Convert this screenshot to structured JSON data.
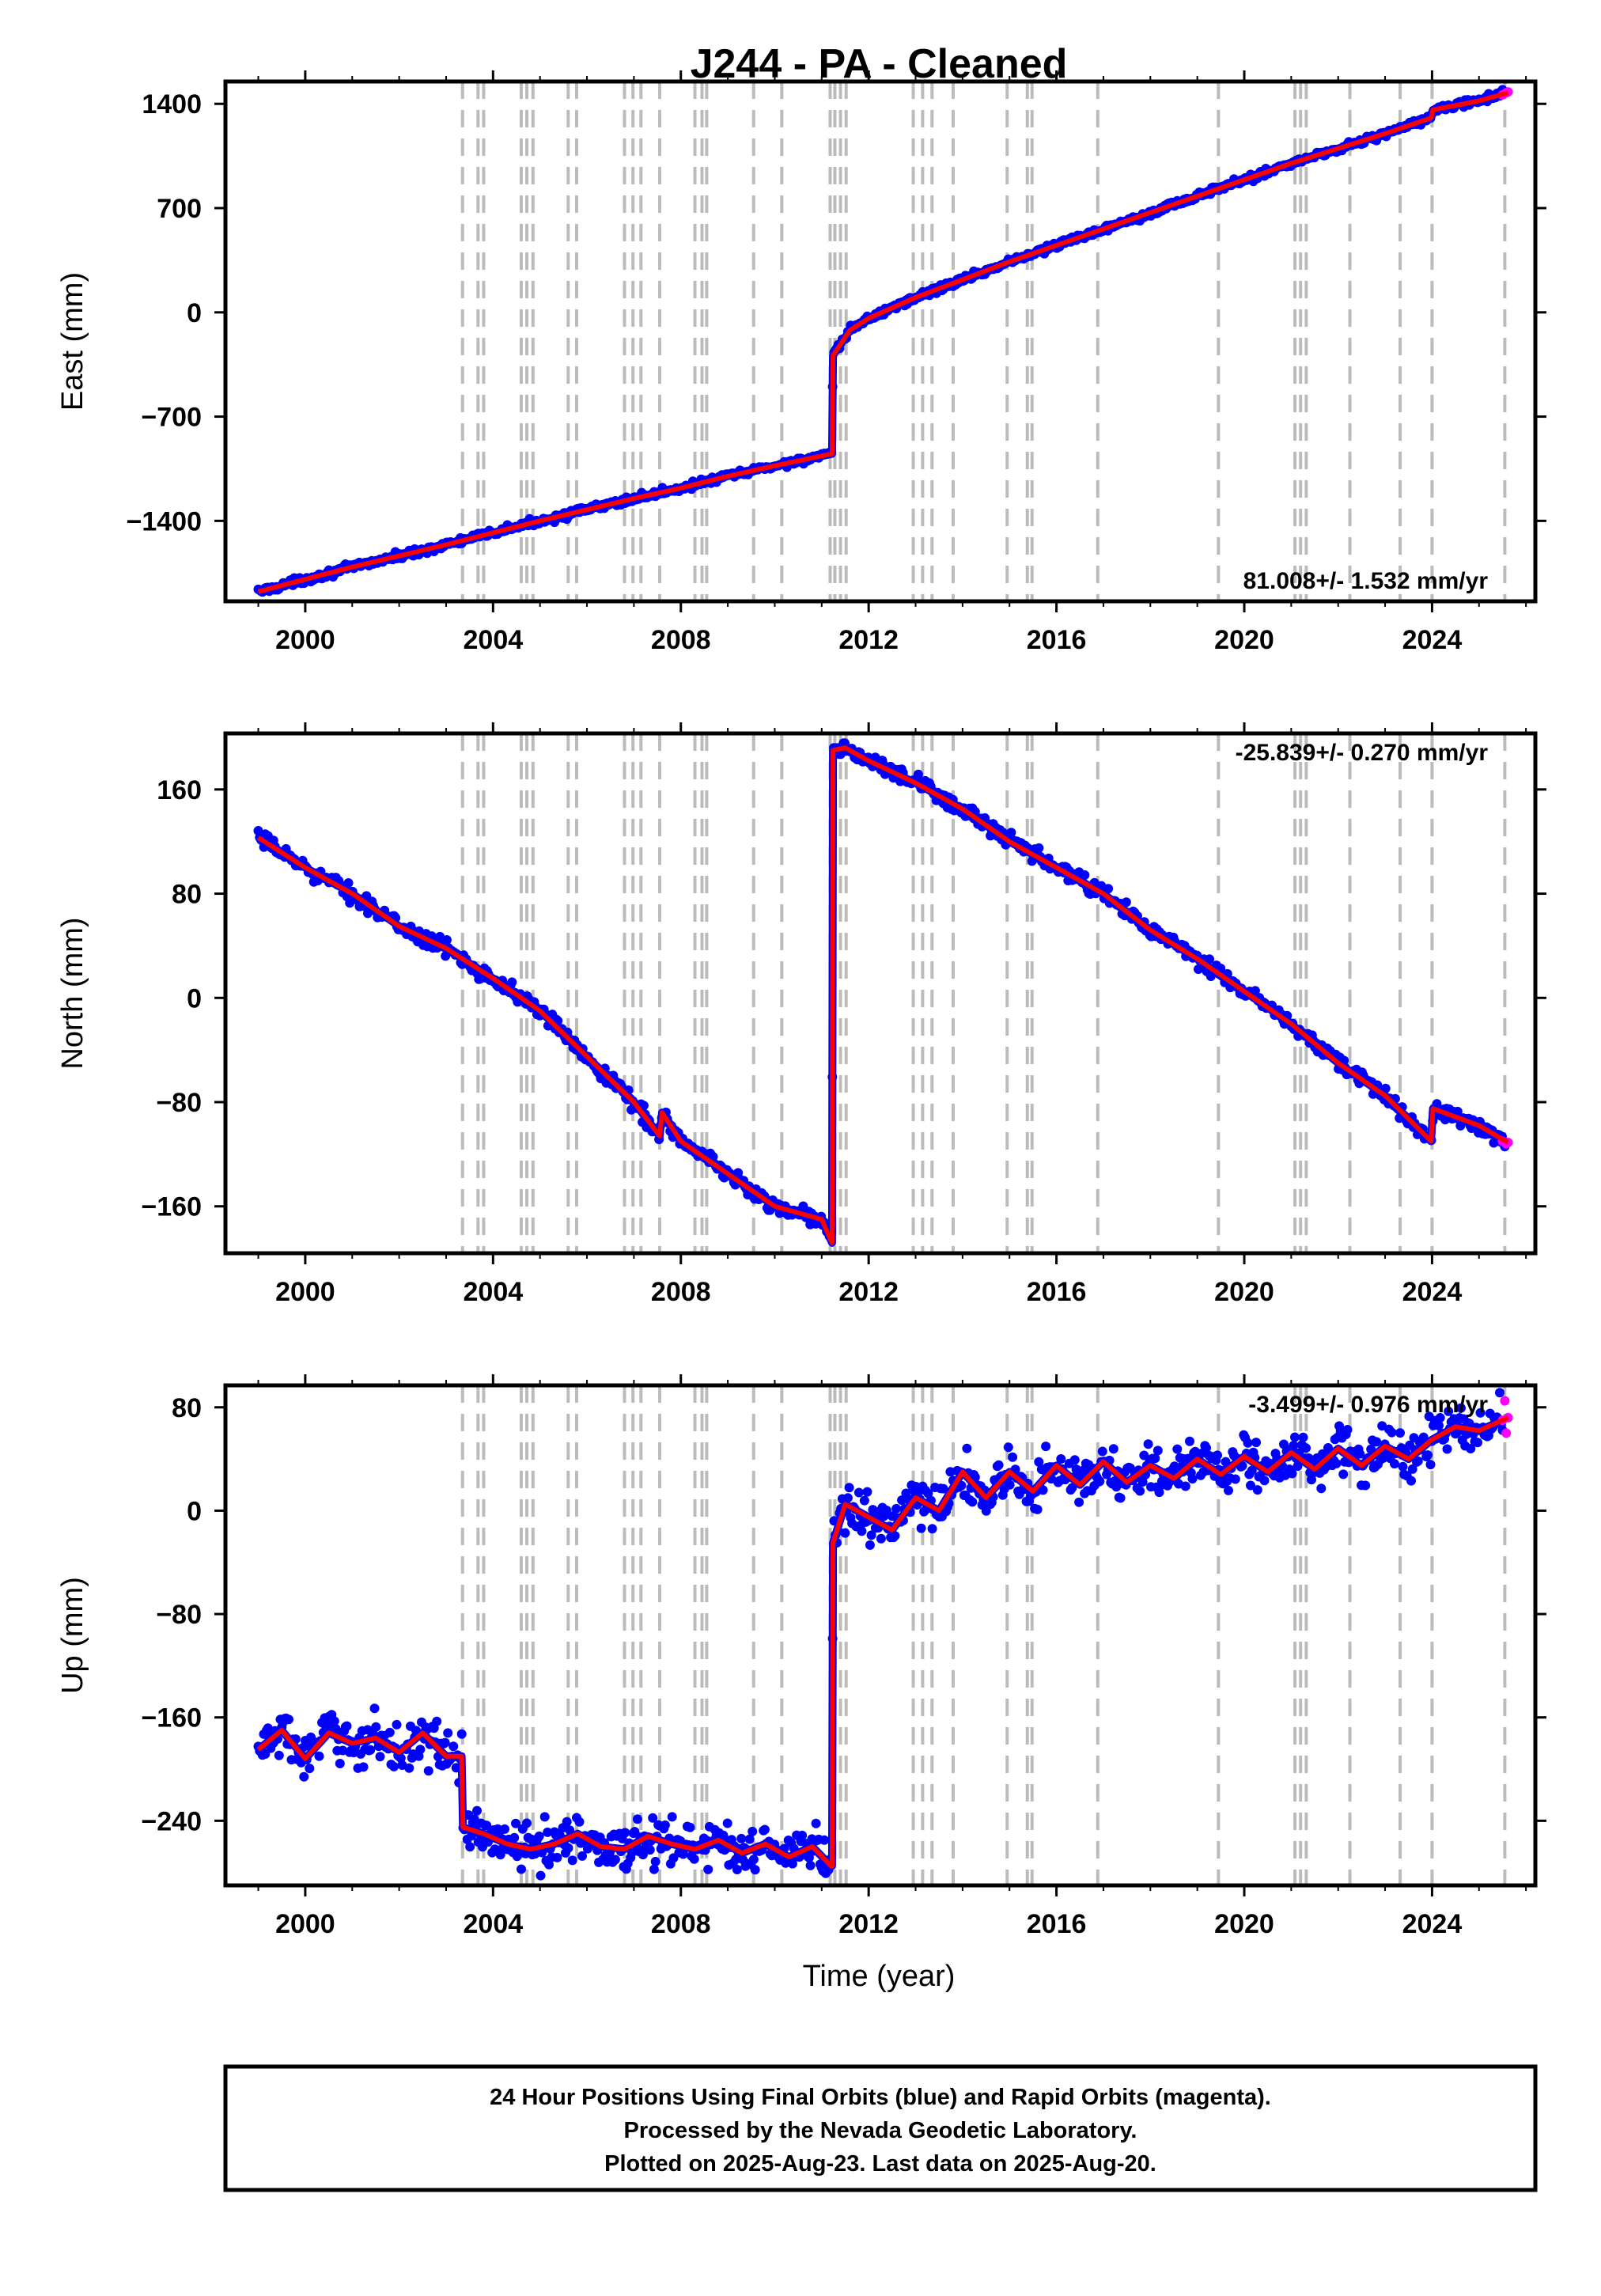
{
  "colors": {
    "final_orbits": "#0000ff",
    "rapid_orbits": "#ff00ff",
    "model": "#ff0000",
    "event_lines": "#bbbbbb",
    "frame": "#000000"
  },
  "chart_data": {
    "title": "J244  - PA - Cleaned",
    "xlabel": "Time (year)",
    "xlim": [
      1998.3,
      2026.2
    ],
    "xticks": [
      2000,
      2004,
      2008,
      2012,
      2016,
      2020,
      2024
    ],
    "event_lines": [
      2003.35,
      2003.68,
      2003.8,
      2004.6,
      2004.72,
      2004.85,
      2005.6,
      2005.78,
      2006.8,
      2006.98,
      2007.15,
      2007.55,
      2008.3,
      2008.45,
      2008.55,
      2009.55,
      2010.15,
      2011.18,
      2011.28,
      2011.4,
      2011.52,
      2012.95,
      2013.15,
      2013.35,
      2013.8,
      2014.95,
      2015.38,
      2015.48,
      2016.88,
      2019.45,
      2021.08,
      2021.2,
      2021.32,
      2022.25,
      2023.32,
      2024.0,
      2025.55
    ],
    "panels": [
      {
        "type": "scatter",
        "ylabel": "East (mm)",
        "ylim": [
          -1940,
          1550
        ],
        "yticks": [
          -1400,
          -700,
          0,
          700,
          1400
        ],
        "ytick_labels": [
          "−1400",
          "−700",
          "0",
          "700",
          "1400"
        ],
        "rate": "81.008+/- 1.532 mm/yr",
        "rate_position": "bottom-right",
        "series": {
          "final_orbits": {
            "x": [
              1999.0,
              2001.0,
              2003.0,
              2004.0,
              2005.0,
              2006.0,
              2007.0,
              2008.0,
              2009.0,
              2010.0,
              2011.22,
              2011.24,
              2011.6,
              2012.0,
              2012.5,
              2013.0,
              2014.0,
              2015.0,
              2016.0,
              2017.0,
              2018.0,
              2019.0,
              2020.0,
              2021.0,
              2022.0,
              2023.0,
              2023.98,
              2024.02,
              2025.0,
              2025.5
            ],
            "y": [
              -1875,
              -1710,
              -1560,
              -1480,
              -1400,
              -1325,
              -1250,
              -1180,
              -1100,
              -1030,
              -950,
              -290,
              -120,
              -40,
              30,
              100,
              220,
              340,
              450,
              560,
              670,
              780,
              890,
              1000,
              1100,
              1200,
              1305,
              1360,
              1420,
              1470
            ]
          },
          "rapid_orbits": {
            "x": [
              2025.5,
              2025.58,
              2025.62
            ],
            "y": [
              1460,
              1475,
              1480
            ]
          },
          "model": {
            "x": [
              1999.0,
              2001.0,
              2003.0,
              2004.0,
              2005.0,
              2006.0,
              2007.0,
              2008.0,
              2009.0,
              2010.0,
              2011.22,
              2011.24,
              2011.6,
              2012.0,
              2012.5,
              2013.0,
              2014.0,
              2015.0,
              2016.0,
              2017.0,
              2018.0,
              2019.0,
              2020.0,
              2021.0,
              2022.0,
              2023.0,
              2023.98,
              2024.02,
              2025.0,
              2025.62
            ],
            "y": [
              -1875,
              -1710,
              -1560,
              -1480,
              -1400,
              -1325,
              -1250,
              -1180,
              -1100,
              -1030,
              -950,
              -290,
              -120,
              -40,
              30,
              100,
              220,
              340,
              450,
              560,
              670,
              780,
              890,
              1000,
              1100,
              1200,
              1305,
              1360,
              1420,
              1475
            ]
          }
        }
      },
      {
        "type": "scatter",
        "ylabel": "North (mm)",
        "ylim": [
          -196,
          203
        ],
        "yticks": [
          -160,
          -80,
          0,
          80,
          160
        ],
        "ytick_labels": [
          "−160",
          "−80",
          "0",
          "80",
          "160"
        ],
        "rate": "-25.839+/- 0.270 mm/yr",
        "rate_position": "top-right",
        "series": {
          "final_orbits": {
            "x": [
              1999.0,
              2000.0,
              2001.0,
              2002.0,
              2003.0,
              2004.0,
              2005.0,
              2006.0,
              2007.0,
              2007.55,
              2007.6,
              2008.0,
              2009.0,
              2010.0,
              2011.0,
              2011.22,
              2011.24,
              2011.5,
              2012.0,
              2013.0,
              2014.0,
              2015.0,
              2016.0,
              2017.0,
              2018.0,
              2019.0,
              2020.0,
              2021.0,
              2022.0,
              2023.0,
              2023.98,
              2024.02,
              2025.0,
              2025.55
            ],
            "y": [
              123,
              100,
              80,
              55,
              38,
              15,
              -10,
              -45,
              -80,
              -106,
              -88,
              -110,
              -135,
              -160,
              -170,
              -188,
              190,
              192,
              182,
              165,
              145,
              120,
              100,
              80,
              52,
              30,
              5,
              -20,
              -50,
              -75,
              -110,
              -85,
              -98,
              -110
            ]
          },
          "rapid_orbits": {
            "x": [
              2025.5,
              2025.58,
              2025.62
            ],
            "y": [
              -110,
              -112,
              -111
            ]
          },
          "model": {
            "x": [
              1999.0,
              2000.0,
              2001.0,
              2002.0,
              2003.0,
              2004.0,
              2005.0,
              2006.0,
              2007.0,
              2007.55,
              2007.6,
              2008.0,
              2009.0,
              2010.0,
              2011.0,
              2011.22,
              2011.24,
              2011.5,
              2012.0,
              2013.0,
              2014.0,
              2015.0,
              2016.0,
              2017.0,
              2018.0,
              2019.0,
              2020.0,
              2021.0,
              2022.0,
              2023.0,
              2023.98,
              2024.02,
              2025.0,
              2025.62
            ],
            "y": [
              123,
              100,
              80,
              55,
              38,
              15,
              -10,
              -45,
              -80,
              -106,
              -88,
              -110,
              -135,
              -160,
              -170,
              -188,
              190,
              192,
              182,
              165,
              145,
              120,
              100,
              80,
              52,
              30,
              5,
              -20,
              -50,
              -75,
              -110,
              -85,
              -98,
              -111
            ]
          }
        }
      },
      {
        "type": "scatter",
        "ylabel": "Up (mm)",
        "ylim": [
          -290,
          97
        ],
        "yticks": [
          -240,
          -160,
          -80,
          0,
          80
        ],
        "ytick_labels": [
          "−240",
          "−160",
          "−80",
          "0",
          "80"
        ],
        "rate": "-3.499+/- 0.976 mm/yr",
        "rate_position": "top-right",
        "series": {
          "final_orbits": {
            "x": [
              1999.0,
              1999.5,
              2000.0,
              2000.5,
              2001.0,
              2001.5,
              2002.0,
              2002.5,
              2003.0,
              2003.33,
              2003.36,
              2003.8,
              2004.3,
              2004.8,
              2005.3,
              2005.8,
              2006.3,
              2006.8,
              2007.3,
              2007.8,
              2008.3,
              2008.8,
              2009.3,
              2009.8,
              2010.3,
              2010.8,
              2011.2,
              2011.22,
              2011.24,
              2011.5,
              2012.0,
              2012.5,
              2013.0,
              2013.5,
              2014.0,
              2014.5,
              2015.0,
              2015.5,
              2016.0,
              2016.5,
              2017.0,
              2017.5,
              2018.0,
              2018.5,
              2019.0,
              2019.5,
              2020.0,
              2020.5,
              2021.0,
              2021.5,
              2022.0,
              2022.5,
              2023.0,
              2023.5,
              2024.0,
              2024.5,
              2025.0,
              2025.5
            ],
            "y": [
              -185,
              -170,
              -192,
              -172,
              -180,
              -176,
              -187,
              -172,
              -190,
              -190,
              -245,
              -250,
              -258,
              -262,
              -258,
              -250,
              -260,
              -262,
              -252,
              -258,
              -262,
              -255,
              -265,
              -258,
              -268,
              -260,
              -275,
              -275,
              -25,
              5,
              -5,
              -15,
              10,
              0,
              30,
              10,
              30,
              15,
              35,
              20,
              38,
              22,
              35,
              25,
              40,
              28,
              42,
              30,
              45,
              32,
              48,
              35,
              50,
              40,
              55,
              65,
              62,
              70
            ]
          },
          "rapid_orbits": {
            "x": [
              2025.5,
              2025.55,
              2025.58,
              2025.62
            ],
            "y": [
              70,
              85,
              60,
              72
            ]
          },
          "model": {
            "x": [
              1999.0,
              1999.5,
              2000.0,
              2000.5,
              2001.0,
              2001.5,
              2002.0,
              2002.5,
              2003.0,
              2003.33,
              2003.36,
              2003.8,
              2004.3,
              2004.8,
              2005.3,
              2005.8,
              2006.3,
              2006.8,
              2007.3,
              2007.8,
              2008.3,
              2008.8,
              2009.3,
              2009.8,
              2010.3,
              2010.8,
              2011.2,
              2011.22,
              2011.24,
              2011.5,
              2012.0,
              2012.5,
              2013.0,
              2013.5,
              2014.0,
              2014.5,
              2015.0,
              2015.5,
              2016.0,
              2016.5,
              2017.0,
              2017.5,
              2018.0,
              2018.5,
              2019.0,
              2019.5,
              2020.0,
              2020.5,
              2021.0,
              2021.5,
              2022.0,
              2022.5,
              2023.0,
              2023.5,
              2024.0,
              2024.5,
              2025.0,
              2025.62
            ],
            "y": [
              -185,
              -170,
              -192,
              -172,
              -180,
              -176,
              -187,
              -172,
              -190,
              -190,
              -245,
              -250,
              -258,
              -262,
              -258,
              -250,
              -260,
              -262,
              -252,
              -258,
              -262,
              -255,
              -265,
              -258,
              -268,
              -260,
              -275,
              -275,
              -25,
              5,
              -5,
              -15,
              10,
              0,
              30,
              10,
              30,
              15,
              35,
              20,
              38,
              22,
              35,
              25,
              40,
              28,
              42,
              30,
              45,
              32,
              48,
              35,
              50,
              40,
              55,
              65,
              62,
              72
            ]
          }
        }
      }
    ]
  },
  "footer": {
    "line1": "24 Hour Positions Using Final Orbits (blue) and Rapid Orbits (magenta).",
    "line2": "Processed by the Nevada Geodetic Laboratory.",
    "line3": "Plotted on 2025-Aug-23. Last data on 2025-Aug-20."
  }
}
